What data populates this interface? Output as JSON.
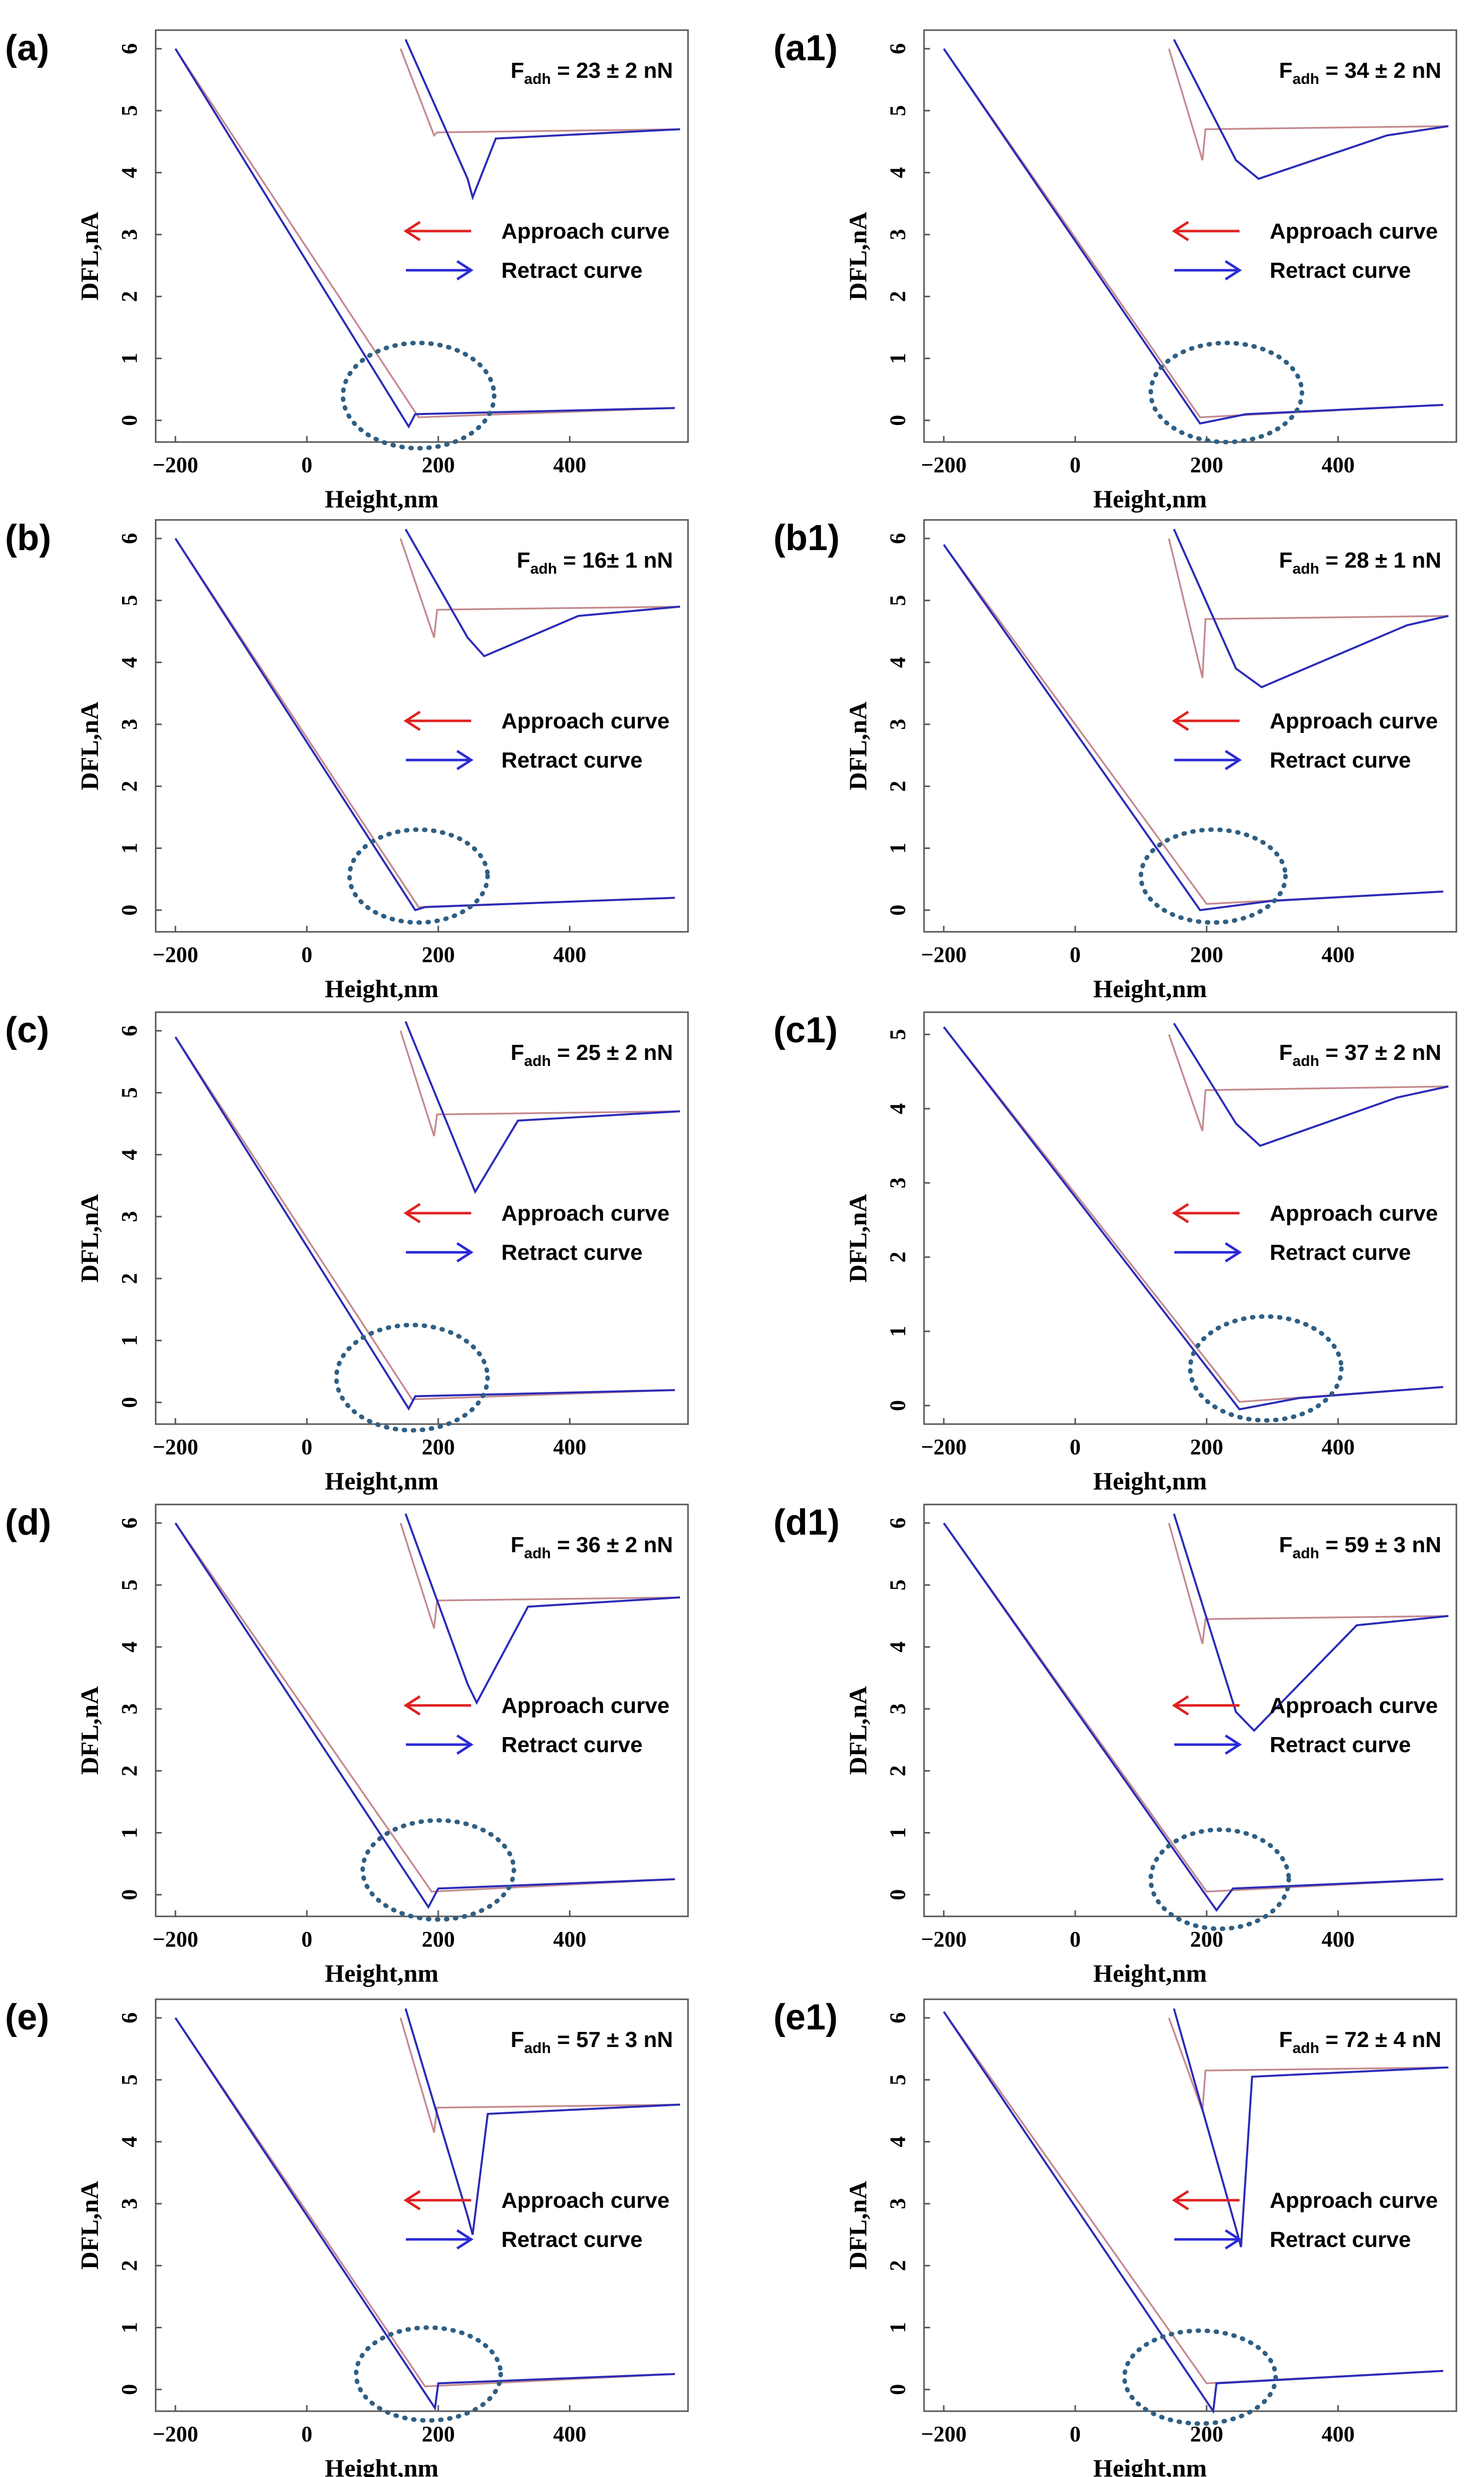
{
  "figure": {
    "colors": {
      "approach": "#c48a8e",
      "retract": "#2b2bb8",
      "approach_arrow": "#e02020",
      "retract_arrow": "#2a2ad8",
      "ellipse": "#2f5f84",
      "frame": "#555555"
    },
    "legend": {
      "approach": "Approach curve",
      "retract": "Retract curve"
    },
    "fadh_symbol": "F",
    "fadh_subscript": "adh"
  },
  "chart_data": [
    {
      "type": "line",
      "panel": "(a)",
      "xlabel": "Height,nm",
      "ylabel": "DFL,nA",
      "xlim": [
        -230,
        580
      ],
      "ylim": [
        -0.35,
        6.3
      ],
      "xticks": [
        -200,
        0,
        200,
        400
      ],
      "yticks": [
        0,
        1,
        2,
        3,
        4,
        5,
        6
      ],
      "fadh_value": " = 23 ± 2 nN",
      "series": [
        {
          "name": "Approach curve",
          "points": [
            [
              -200,
              6.0
            ],
            [
              170,
              0.05
            ],
            [
              560,
              0.2
            ]
          ]
        },
        {
          "name": "Retract curve",
          "points": [
            [
              -200,
              6.0
            ],
            [
              155,
              -0.1
            ],
            [
              165,
              0.1
            ],
            [
              560,
              0.2
            ]
          ]
        }
      ],
      "highlight": {
        "cx": 170,
        "cy": 0.4,
        "rx": 115,
        "ry": 0.85
      },
      "inset": {
        "retract_min": 3.6,
        "approach_min": 4.6,
        "plateau": 4.7,
        "adh_width": 0.14
      }
    },
    {
      "type": "line",
      "panel": "(a1)",
      "xlabel": "Height,nm",
      "ylabel": "DFL,nA",
      "xlim": [
        -230,
        580
      ],
      "ylim": [
        -0.35,
        6.3
      ],
      "xticks": [
        -200,
        0,
        200,
        400
      ],
      "yticks": [
        0,
        1,
        2,
        3,
        4,
        5,
        6
      ],
      "fadh_value": " = 34 ± 2 nN",
      "series": [
        {
          "name": "Approach curve",
          "points": [
            [
              -200,
              6.0
            ],
            [
              190,
              0.05
            ],
            [
              560,
              0.25
            ]
          ]
        },
        {
          "name": "Retract curve",
          "points": [
            [
              -200,
              6.0
            ],
            [
              190,
              -0.05
            ],
            [
              260,
              0.1
            ],
            [
              560,
              0.25
            ]
          ]
        }
      ],
      "highlight": {
        "cx": 230,
        "cy": 0.45,
        "rx": 115,
        "ry": 0.8
      },
      "inset": {
        "retract_min": 3.9,
        "approach_min": 4.2,
        "plateau": 4.75,
        "adh_width": 0.75
      }
    },
    {
      "type": "line",
      "panel": "(b)",
      "xlabel": "Height,nm",
      "ylabel": "DFL,nA",
      "xlim": [
        -230,
        580
      ],
      "ylim": [
        -0.35,
        6.3
      ],
      "xticks": [
        -200,
        0,
        200,
        400
      ],
      "yticks": [
        0,
        1,
        2,
        3,
        4,
        5,
        6
      ],
      "fadh_value": " = 16± 1 nN",
      "series": [
        {
          "name": "Approach curve",
          "points": [
            [
              -200,
              6.0
            ],
            [
              170,
              0.05
            ],
            [
              560,
              0.2
            ]
          ]
        },
        {
          "name": "Retract curve",
          "points": [
            [
              -200,
              6.0
            ],
            [
              165,
              0.0
            ],
            [
              180,
              0.05
            ],
            [
              560,
              0.2
            ]
          ]
        }
      ],
      "highlight": {
        "cx": 170,
        "cy": 0.55,
        "rx": 105,
        "ry": 0.75
      },
      "inset": {
        "retract_min": 4.1,
        "approach_min": 4.4,
        "plateau": 4.9,
        "adh_width": 0.55
      }
    },
    {
      "type": "line",
      "panel": "(b1)",
      "xlabel": "Height,nm",
      "ylabel": "DFL,nA",
      "xlim": [
        -230,
        580
      ],
      "ylim": [
        -0.35,
        6.3
      ],
      "xticks": [
        -200,
        0,
        200,
        400
      ],
      "yticks": [
        0,
        1,
        2,
        3,
        4,
        5,
        6
      ],
      "fadh_value": " = 28 ± 1 nN",
      "series": [
        {
          "name": "Approach curve",
          "points": [
            [
              -200,
              5.9
            ],
            [
              200,
              0.1
            ],
            [
              560,
              0.3
            ]
          ]
        },
        {
          "name": "Retract curve",
          "points": [
            [
              -200,
              5.9
            ],
            [
              190,
              0.0
            ],
            [
              300,
              0.15
            ],
            [
              560,
              0.3
            ]
          ]
        }
      ],
      "highlight": {
        "cx": 210,
        "cy": 0.55,
        "rx": 110,
        "ry": 0.75
      },
      "inset": {
        "retract_min": 3.6,
        "approach_min": 3.75,
        "plateau": 4.75,
        "adh_width": 0.85
      }
    },
    {
      "type": "line",
      "panel": "(c)",
      "xlabel": "Height,nm",
      "ylabel": "DFL,nA",
      "xlim": [
        -230,
        580
      ],
      "ylim": [
        -0.35,
        6.3
      ],
      "xticks": [
        -200,
        0,
        200,
        400
      ],
      "yticks": [
        0,
        1,
        2,
        3,
        4,
        5,
        6
      ],
      "fadh_value": " = 25 ± 2 nN",
      "series": [
        {
          "name": "Approach curve",
          "points": [
            [
              -200,
              5.9
            ],
            [
              160,
              0.05
            ],
            [
              560,
              0.2
            ]
          ]
        },
        {
          "name": "Retract curve",
          "points": [
            [
              -200,
              5.9
            ],
            [
              155,
              -0.1
            ],
            [
              165,
              0.1
            ],
            [
              560,
              0.2
            ]
          ]
        }
      ],
      "highlight": {
        "cx": 160,
        "cy": 0.4,
        "rx": 115,
        "ry": 0.85
      },
      "inset": {
        "retract_min": 3.4,
        "approach_min": 4.3,
        "plateau": 4.7,
        "adh_width": 0.25
      }
    },
    {
      "type": "line",
      "panel": "(c1)",
      "xlabel": "Height,nm",
      "ylabel": "DFL,nA",
      "xlim": [
        -230,
        580
      ],
      "ylim": [
        -0.25,
        5.3
      ],
      "xticks": [
        -200,
        0,
        200,
        400
      ],
      "yticks": [
        0,
        1,
        2,
        3,
        4,
        5
      ],
      "fadh_value": " = 37 ± 2 nN",
      "series": [
        {
          "name": "Approach curve",
          "points": [
            [
              -200,
              5.1
            ],
            [
              250,
              0.05
            ],
            [
              560,
              0.25
            ]
          ]
        },
        {
          "name": "Retract curve",
          "points": [
            [
              -200,
              5.1
            ],
            [
              250,
              -0.05
            ],
            [
              340,
              0.1
            ],
            [
              560,
              0.25
            ]
          ]
        }
      ],
      "highlight": {
        "cx": 290,
        "cy": 0.5,
        "rx": 115,
        "ry": 0.7
      },
      "inset": {
        "retract_min": 3.5,
        "approach_min": 3.7,
        "plateau": 4.3,
        "adh_width": 0.8
      }
    },
    {
      "type": "line",
      "panel": "(d)",
      "xlabel": "Height,nm",
      "ylabel": "DFL,nA",
      "xlim": [
        -230,
        580
      ],
      "ylim": [
        -0.35,
        6.3
      ],
      "xticks": [
        -200,
        0,
        200,
        400
      ],
      "yticks": [
        0,
        1,
        2,
        3,
        4,
        5,
        6
      ],
      "fadh_value": " = 36 ± 2 nN",
      "series": [
        {
          "name": "Approach curve",
          "points": [
            [
              -200,
              6.0
            ],
            [
              190,
              0.05
            ],
            [
              560,
              0.25
            ]
          ]
        },
        {
          "name": "Retract curve",
          "points": [
            [
              -200,
              6.0
            ],
            [
              185,
              -0.2
            ],
            [
              200,
              0.1
            ],
            [
              560,
              0.25
            ]
          ]
        }
      ],
      "highlight": {
        "cx": 200,
        "cy": 0.4,
        "rx": 115,
        "ry": 0.8
      },
      "inset": {
        "retract_min": 3.1,
        "approach_min": 4.3,
        "plateau": 4.8,
        "adh_width": 0.3
      }
    },
    {
      "type": "line",
      "panel": "(d1)",
      "xlabel": "Height,nm",
      "ylabel": "DFL,nA",
      "xlim": [
        -230,
        580
      ],
      "ylim": [
        -0.35,
        6.3
      ],
      "xticks": [
        -200,
        0,
        200,
        400
      ],
      "yticks": [
        0,
        1,
        2,
        3,
        4,
        5,
        6
      ],
      "fadh_value": " = 59 ± 3 nN",
      "series": [
        {
          "name": "Approach curve",
          "points": [
            [
              -200,
              6.0
            ],
            [
              200,
              0.05
            ],
            [
              560,
              0.25
            ]
          ]
        },
        {
          "name": "Retract curve",
          "points": [
            [
              -200,
              6.0
            ],
            [
              215,
              -0.25
            ],
            [
              240,
              0.1
            ],
            [
              560,
              0.25
            ]
          ]
        }
      ],
      "highlight": {
        "cx": 220,
        "cy": 0.25,
        "rx": 105,
        "ry": 0.8
      },
      "inset": {
        "retract_min": 2.65,
        "approach_min": 4.05,
        "plateau": 4.5,
        "adh_width": 0.6
      }
    },
    {
      "type": "line",
      "panel": "(e)",
      "xlabel": "Height,nm",
      "ylabel": "DFL,nA",
      "xlim": [
        -230,
        580
      ],
      "ylim": [
        -0.35,
        6.3
      ],
      "xticks": [
        -200,
        0,
        200,
        400
      ],
      "yticks": [
        0,
        1,
        2,
        3,
        4,
        5,
        6
      ],
      "fadh_value": " = 57 ± 3 nN",
      "series": [
        {
          "name": "Approach curve",
          "points": [
            [
              -200,
              6.0
            ],
            [
              180,
              0.05
            ],
            [
              560,
              0.25
            ]
          ]
        },
        {
          "name": "Retract curve",
          "points": [
            [
              -200,
              6.0
            ],
            [
              195,
              -0.3
            ],
            [
              200,
              0.1
            ],
            [
              560,
              0.25
            ]
          ]
        }
      ],
      "highlight": {
        "cx": 185,
        "cy": 0.25,
        "rx": 110,
        "ry": 0.75
      },
      "inset": {
        "retract_min": 2.5,
        "approach_min": 4.15,
        "plateau": 4.6,
        "adh_width": 0.1
      }
    },
    {
      "type": "line",
      "panel": "(e1)",
      "xlabel": "Height,nm",
      "ylabel": "DFL,nA",
      "xlim": [
        -230,
        580
      ],
      "ylim": [
        -0.35,
        6.3
      ],
      "xticks": [
        -200,
        0,
        200,
        400
      ],
      "yticks": [
        0,
        1,
        2,
        3,
        4,
        5,
        6
      ],
      "fadh_value": " = 72 ± 4 nN",
      "series": [
        {
          "name": "Approach curve",
          "points": [
            [
              -200,
              6.1
            ],
            [
              200,
              0.1
            ],
            [
              560,
              0.3
            ]
          ]
        },
        {
          "name": "Retract curve",
          "points": [
            [
              -200,
              6.1
            ],
            [
              210,
              -0.35
            ],
            [
              215,
              0.1
            ],
            [
              560,
              0.3
            ]
          ]
        }
      ],
      "highlight": {
        "cx": 190,
        "cy": 0.2,
        "rx": 115,
        "ry": 0.75
      },
      "inset": {
        "retract_min": 2.3,
        "approach_min": 4.5,
        "plateau": 5.2,
        "adh_width": 0.08
      }
    }
  ]
}
